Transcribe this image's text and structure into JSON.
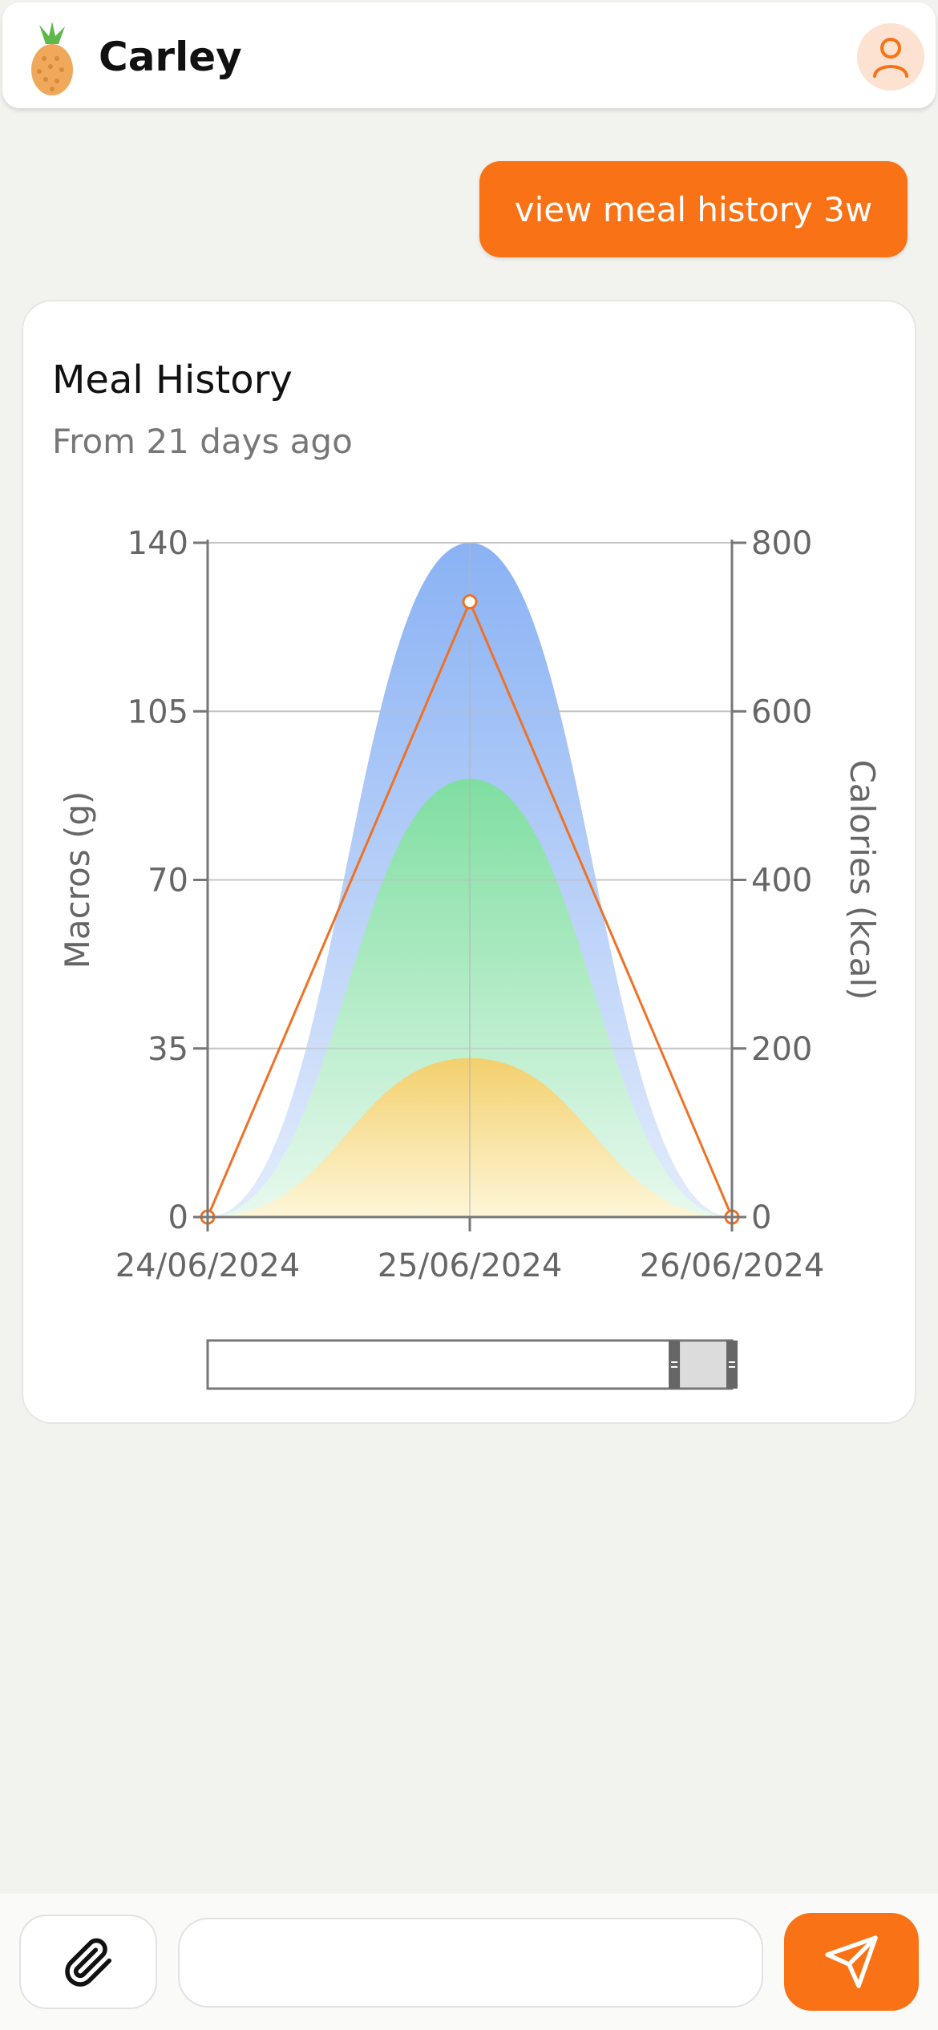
{
  "header": {
    "title": "Carley",
    "logo_icon": "pineapple-icon",
    "profile_icon": "user-icon"
  },
  "chat": {
    "user_message": "view meal history 3w"
  },
  "card": {
    "title": "Meal History",
    "subtitle": "From 21 days ago"
  },
  "chart_data": {
    "type": "area",
    "title": "Meal History",
    "subtitle": "From 21 days ago",
    "categories": [
      "24/06/2024",
      "25/06/2024",
      "26/06/2024"
    ],
    "y_left": {
      "label": "Macros (g)",
      "ticks": [
        0,
        35,
        70,
        105,
        140
      ],
      "range": [
        0,
        140
      ]
    },
    "y_right": {
      "label": "Calories (kcal)",
      "ticks": [
        0,
        200,
        400,
        600,
        800
      ],
      "range": [
        0,
        800
      ]
    },
    "series": [
      {
        "type": "area",
        "axis": "left",
        "color": "#8fb4f5",
        "values": [
          0,
          140,
          0
        ]
      },
      {
        "type": "area",
        "axis": "left",
        "color": "#86e0a6",
        "values": [
          0,
          91,
          0
        ]
      },
      {
        "type": "area",
        "axis": "left",
        "color": "#f4d479",
        "values": [
          0,
          33,
          0
        ]
      },
      {
        "type": "line",
        "axis": "right",
        "color": "#ee7226",
        "values": [
          0,
          730,
          0
        ]
      }
    ],
    "grid": true,
    "slider": {
      "start": 0.89,
      "end": 1.0
    }
  },
  "composer": {
    "attach_icon": "paperclip-icon",
    "placeholder": "",
    "send_icon": "send-icon"
  }
}
